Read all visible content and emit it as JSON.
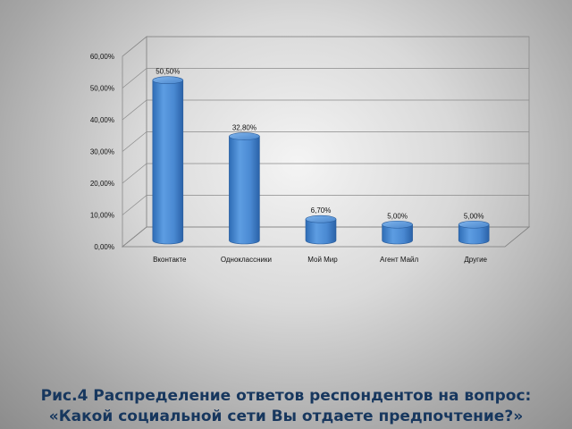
{
  "chart_data": {
    "type": "bar",
    "categories": [
      "Вконтакте",
      "Одноклассники",
      "Мой Мир",
      "Агент Майл",
      "Другие"
    ],
    "values": [
      50.5,
      32.8,
      6.7,
      5.0,
      5.0
    ],
    "data_labels": [
      "50,50%",
      "32,80%",
      "6,70%",
      "5,00%",
      "5,00%"
    ],
    "y_ticks": [
      "0,00%",
      "10,00%",
      "20,00%",
      "30,00%",
      "40,00%",
      "50,00%",
      "60,00%"
    ],
    "ylim": [
      0,
      60
    ],
    "grid": true,
    "three_d": true,
    "bar_color": "#4f8fd6",
    "title": "",
    "xlabel": "",
    "ylabel": ""
  },
  "caption": {
    "line1": "Рис.4  Распределение ответов респондентов на вопрос:",
    "line2": "«Какой социальной сети Вы отдаете предпочтение?»"
  }
}
